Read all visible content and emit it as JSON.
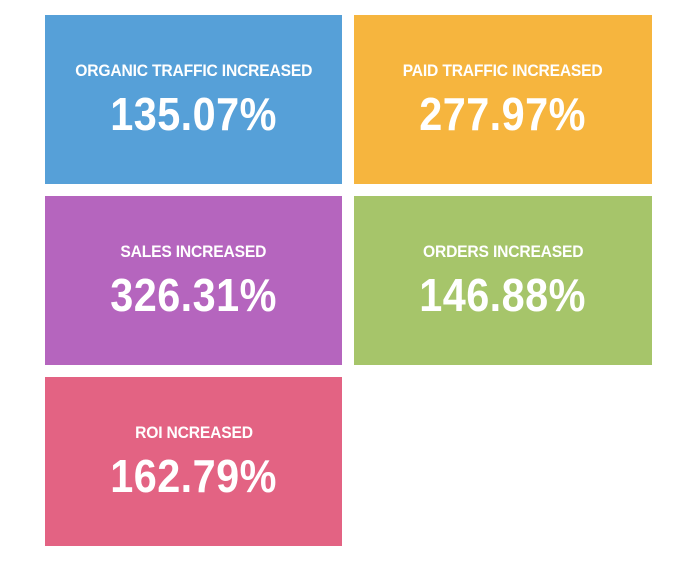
{
  "tiles": {
    "organic": {
      "label": "ORGANIC TRAFFIC INCREASED",
      "value": "135.07%",
      "color": "#56A0D8"
    },
    "paid": {
      "label": "PAID TRAFFIC INCREASED",
      "value": "277.97%",
      "color": "#F6B53E"
    },
    "sales": {
      "label": "SALES INCREASED",
      "value": "326.31%",
      "color": "#B565BE"
    },
    "orders": {
      "label": "ORDERS INCREASED",
      "value": "146.88%",
      "color": "#A6C56A"
    },
    "roi": {
      "label": "ROI NCREASED",
      "value": "162.79%",
      "color": "#E36383"
    }
  }
}
